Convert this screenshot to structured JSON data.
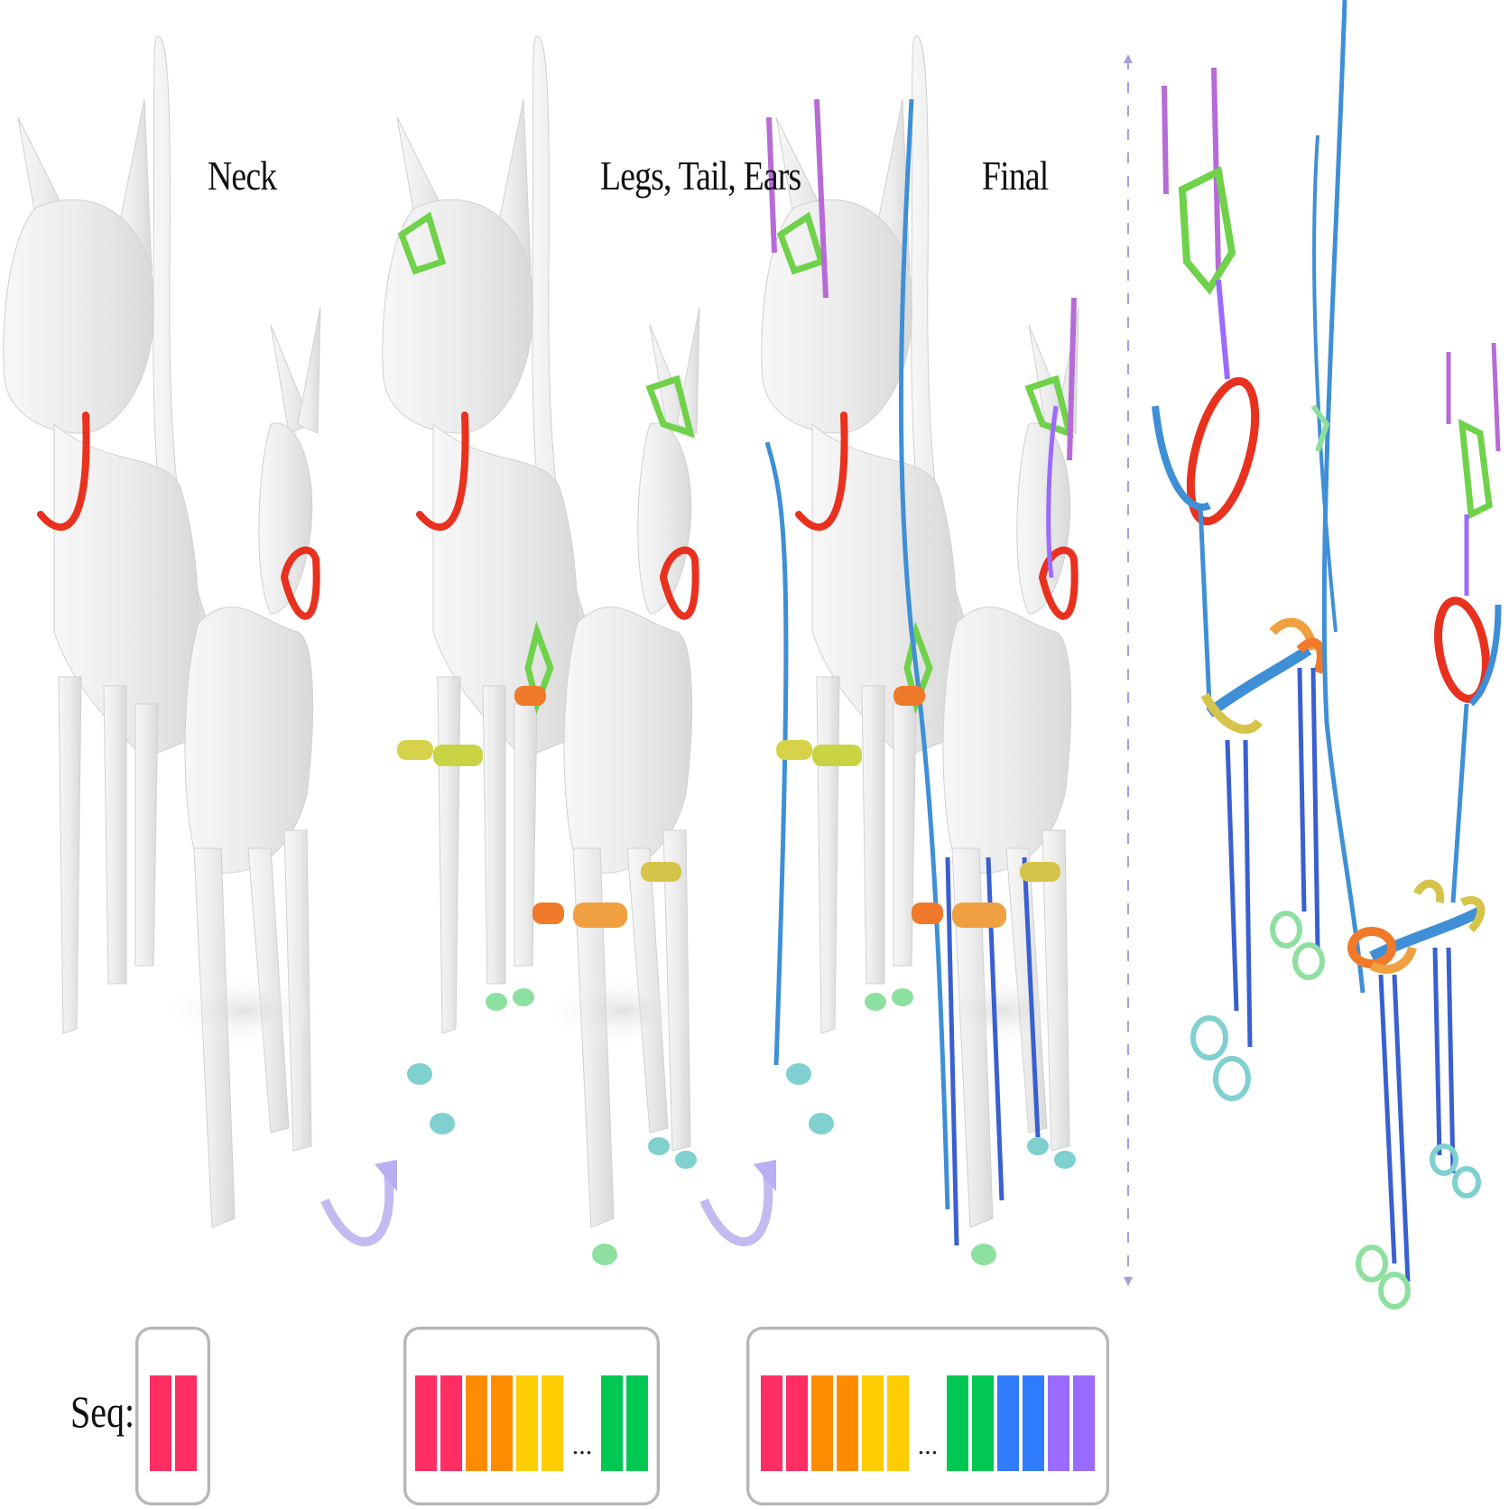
{
  "stages": [
    {
      "label": "Neck"
    },
    {
      "label": "Legs, Tail, Ears"
    },
    {
      "label": "Final"
    }
  ],
  "sequence": {
    "label": "Seq:",
    "ellipsis": "...",
    "colors": {
      "neck": "#ff2e63",
      "legs": "#ff8c00",
      "tail": "#ffcc00",
      "ears": "#00c853",
      "body": "#2f7cff",
      "head": "#9b6bff"
    },
    "boxes": [
      {
        "blocks_before": [
          "#ff2e63",
          "#ff2e63"
        ],
        "blocks_after": []
      },
      {
        "blocks_before": [
          "#ff2e63",
          "#ff2e63",
          "#ff8c00",
          "#ff8c00",
          "#ffcc00",
          "#ffcc00"
        ],
        "blocks_after": [
          "#00c853",
          "#00c853"
        ]
      },
      {
        "blocks_before": [
          "#ff2e63",
          "#ff2e63",
          "#ff8c00",
          "#ff8c00",
          "#ffcc00",
          "#ffcc00"
        ],
        "blocks_after": [
          "#00c853",
          "#00c853",
          "#2f7cff",
          "#2f7cff",
          "#9b6bff",
          "#9b6bff"
        ]
      }
    ]
  },
  "colors": {
    "mesh": "#ececec",
    "mesh_stroke": "#cfcfcf",
    "neck_ring": "#e8311e",
    "leg_ring_orange": "#f07a2a",
    "leg_ring_yellow": "#d6d34a",
    "ear_ring": "#6fd24a",
    "foot_ring": "#7fd0cf",
    "spine": "#3f8fd6",
    "ear_tip": "#b66bd6",
    "arrow": "#b9aef0",
    "divider": "#a59fe0"
  }
}
